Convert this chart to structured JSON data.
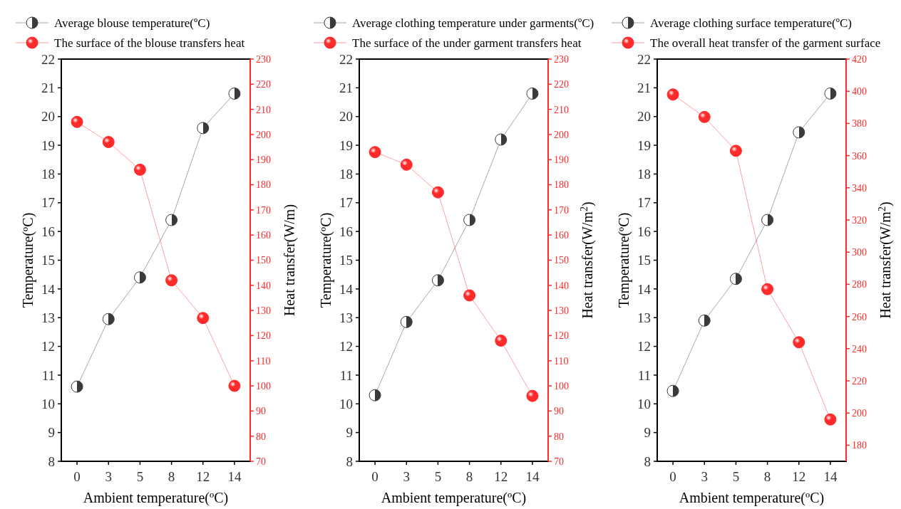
{
  "chart_data": [
    {
      "type": "line",
      "categories": [
        "0",
        "3",
        "5",
        "8",
        "12",
        "14"
      ],
      "xlabel": "Ambient temperature(ºC)",
      "ylabel": "Temperature(ºC)",
      "y2label": "Heat transfer(W/m)",
      "ylim": [
        8,
        22
      ],
      "yticks": [
        8,
        9,
        10,
        11,
        12,
        13,
        14,
        15,
        16,
        17,
        18,
        19,
        20,
        21,
        22
      ],
      "y2lim": [
        70,
        230
      ],
      "y2ticks": [
        70,
        80,
        90,
        100,
        110,
        120,
        130,
        140,
        150,
        160,
        170,
        180,
        190,
        200,
        210,
        220,
        230
      ],
      "legend": "top",
      "marker": "circle",
      "grid": false,
      "series": [
        {
          "name": "Average blouse temperature(ºC)",
          "color": "#3a3a3a",
          "values": [
            10.6,
            12.95,
            14.4,
            16.4,
            19.6,
            20.8
          ]
        },
        {
          "name": "The surface of the blouse transfers heat",
          "color": "#ff2a2a",
          "axis": "y2",
          "values": [
            205,
            197,
            186,
            142,
            127,
            100
          ]
        }
      ]
    },
    {
      "type": "line",
      "categories": [
        "0",
        "3",
        "5",
        "8",
        "12",
        "14"
      ],
      "xlabel": "Ambient temperature(ºC)",
      "ylabel": "Temperature(ºC)",
      "y2label": "Heat transfer(W/m$^{2}$)",
      "ylim": [
        8,
        22
      ],
      "yticks": [
        8,
        9,
        10,
        11,
        12,
        13,
        14,
        15,
        16,
        17,
        18,
        19,
        20,
        21,
        22
      ],
      "y2lim": [
        70,
        230
      ],
      "y2ticks": [
        70,
        80,
        90,
        100,
        110,
        120,
        130,
        140,
        150,
        160,
        170,
        180,
        190,
        200,
        210,
        220,
        230
      ],
      "legend": "top",
      "marker": "circle",
      "grid": false,
      "series": [
        {
          "name": "Average clothing temperature under garments(ºC)",
          "color": "#3a3a3a",
          "values": [
            10.3,
            12.85,
            14.3,
            16.4,
            19.2,
            20.8
          ]
        },
        {
          "name": "The surface of the under garment transfers heat",
          "color": "#ff2a2a",
          "axis": "y2",
          "values": [
            193,
            188,
            177,
            136,
            118,
            96
          ]
        }
      ]
    },
    {
      "type": "line",
      "categories": [
        "0",
        "3",
        "5",
        "8",
        "12",
        "14"
      ],
      "xlabel": "Ambient temperature(ºC)",
      "ylabel": "Temperature(ºC)",
      "y2label": "Heat transfer(W/m$^{2}$)",
      "ylim": [
        8,
        22
      ],
      "yticks": [
        8,
        9,
        10,
        11,
        12,
        13,
        14,
        15,
        16,
        17,
        18,
        19,
        20,
        21,
        22
      ],
      "y2lim": [
        170,
        420
      ],
      "y2ticks": [
        180,
        200,
        220,
        240,
        260,
        280,
        300,
        320,
        340,
        360,
        380,
        400,
        420
      ],
      "legend": "top",
      "marker": "circle",
      "grid": false,
      "series": [
        {
          "name": "Average clothing surface temperature(ºC)",
          "color": "#3a3a3a",
          "values": [
            10.45,
            12.9,
            14.35,
            16.4,
            19.45,
            20.8
          ]
        },
        {
          "name": "The overall heat transfer of the garment surface",
          "color": "#ff2a2a",
          "axis": "y2",
          "values": [
            398,
            384,
            363,
            277,
            244,
            196
          ]
        }
      ]
    }
  ]
}
